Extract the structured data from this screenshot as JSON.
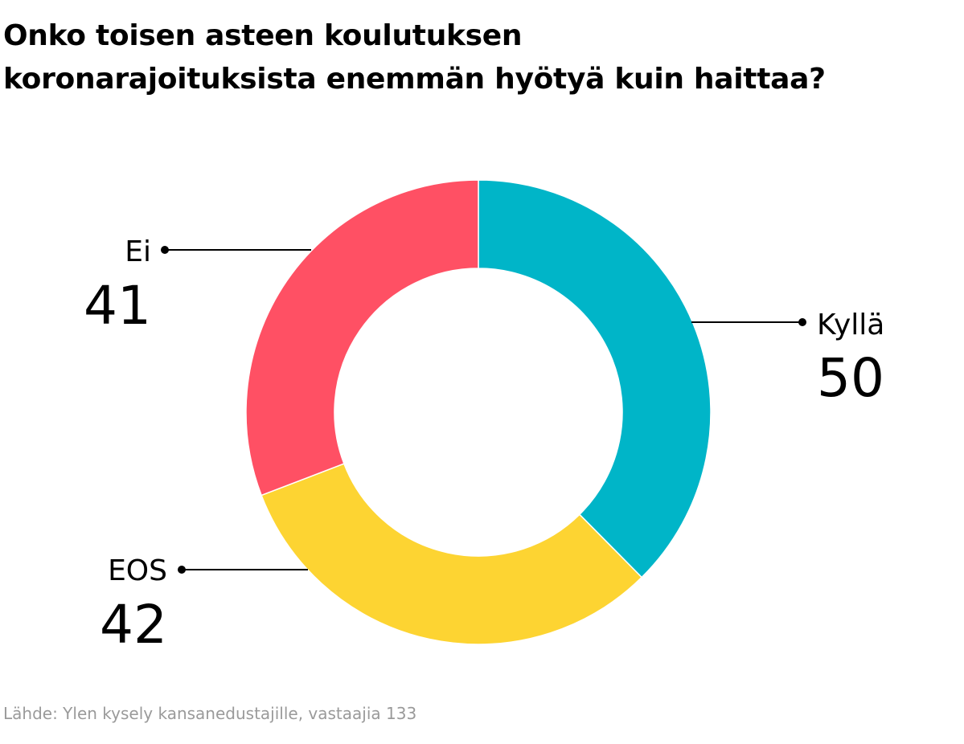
{
  "title_lines": [
    "Onko toisen asteen koulutuksen",
    "koronarajoituksista enemmän hyötyä kuin haittaa?"
  ],
  "source": "Lähde: Ylen kysely kansanedustajille, vastaajia 133",
  "chart_data": {
    "type": "pie",
    "donut": true,
    "title": "Onko toisen asteen koulutuksen koronarajoituksista enemmän hyötyä kuin haittaa?",
    "slices": [
      {
        "label": "Kyllä",
        "value": 50,
        "color": "#00b5c8"
      },
      {
        "label": "EOS",
        "value": 42,
        "color": "#fdd432"
      },
      {
        "label": "Ei",
        "value": 41,
        "color": "#ff5064"
      }
    ],
    "total": 133,
    "start": "top, clockwise",
    "legend": "none"
  }
}
